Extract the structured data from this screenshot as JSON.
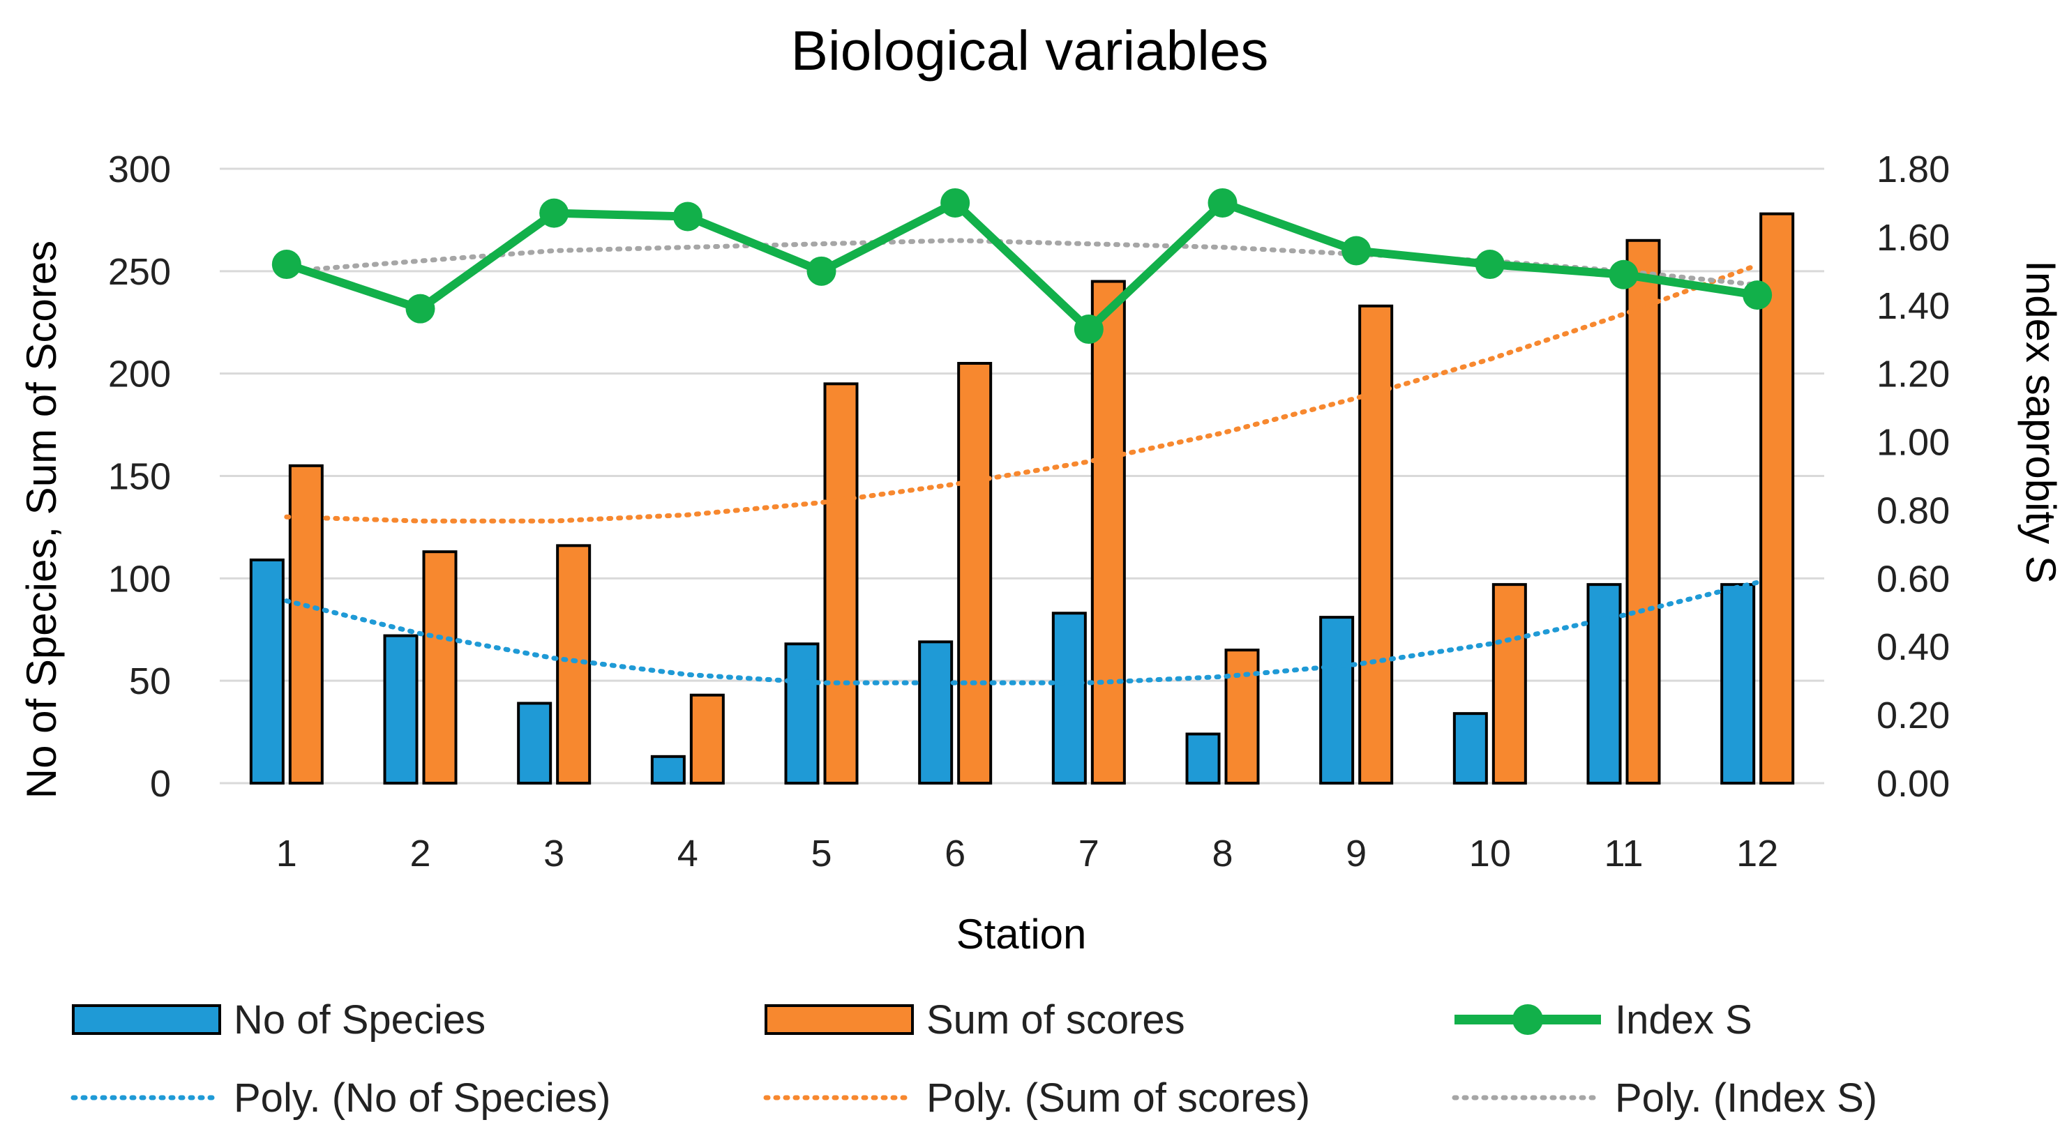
{
  "chart_data": {
    "type": "bar",
    "title": "Biological variables",
    "xlabel": "Station",
    "ylabel": "No of Species, Sum of Scores",
    "y2label": "Index saprobity S",
    "ylim": [
      0,
      300
    ],
    "y2lim": [
      0,
      1.8
    ],
    "yticks": [
      "0",
      "50",
      "100",
      "150",
      "200",
      "250",
      "300"
    ],
    "y2ticks": [
      "0.00",
      "0.20",
      "0.40",
      "0.60",
      "0.80",
      "1.00",
      "1.20",
      "1.40",
      "1.60",
      "1.80"
    ],
    "categories": [
      "1",
      "2",
      "3",
      "4",
      "5",
      "6",
      "7",
      "8",
      "9",
      "10",
      "11",
      "12"
    ],
    "grid": true,
    "legend_position": "bottom",
    "series": [
      {
        "name": "No of Species",
        "kind": "bar",
        "axis": "left",
        "color": "#1f9ad6",
        "values": [
          109,
          72,
          39,
          13,
          68,
          69,
          83,
          24,
          81,
          34,
          97,
          97
        ]
      },
      {
        "name": "Sum of scores",
        "kind": "bar",
        "axis": "left",
        "color": "#f7882f",
        "values": [
          155,
          113,
          116,
          43,
          195,
          205,
          245,
          65,
          233,
          97,
          265,
          278
        ]
      },
      {
        "name": "Index S",
        "kind": "line",
        "axis": "right",
        "color": "#12b04a",
        "values": [
          1.52,
          1.39,
          1.67,
          1.66,
          1.5,
          1.7,
          1.33,
          1.7,
          1.56,
          1.52,
          1.49,
          1.43
        ]
      }
    ],
    "trendlines": [
      {
        "name": "Poly. (No of Species)",
        "axis": "left",
        "color": "#1f9ad6",
        "values": [
          89,
          73,
          61,
          53,
          49,
          49,
          49,
          52,
          58,
          68,
          82,
          98
        ]
      },
      {
        "name": "Poly. (Sum of scores)",
        "axis": "left",
        "color": "#f7882f",
        "values": [
          130,
          128,
          128,
          131,
          137,
          146,
          157,
          171,
          188,
          207,
          229,
          253
        ]
      },
      {
        "name": "Poly. (Index S)",
        "axis": "right",
        "color": "#a6a6a6",
        "values": [
          1.5,
          1.53,
          1.56,
          1.57,
          1.58,
          1.59,
          1.58,
          1.57,
          1.55,
          1.53,
          1.5,
          1.46
        ]
      }
    ]
  }
}
